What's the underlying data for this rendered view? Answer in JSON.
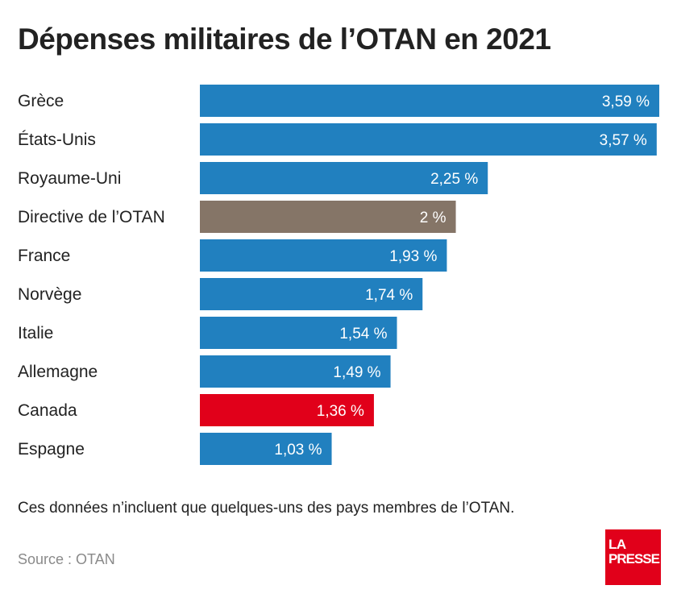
{
  "chart_data": {
    "type": "bar",
    "orientation": "horizontal",
    "title": "Dépenses militaires de l’OTAN en 2021",
    "categories": [
      "Grèce",
      "États-Unis",
      "Royaume-Uni",
      "Directive de l’OTAN",
      "France",
      "Norvège",
      "Italie",
      "Allemagne",
      "Canada",
      "Espagne"
    ],
    "values": [
      3.59,
      3.57,
      2.25,
      2,
      1.93,
      1.74,
      1.54,
      1.49,
      1.36,
      1.03
    ],
    "value_labels": [
      "3,59 %",
      "3,57 %",
      "2,25 %",
      "2 %",
      "1,93 %",
      "1,74 %",
      "1,54 %",
      "1,49 %",
      "1,36 %",
      "1,03 %"
    ],
    "bar_colors": [
      "#2180bf",
      "#2180bf",
      "#2180bf",
      "#857567",
      "#2180bf",
      "#2180bf",
      "#2180bf",
      "#2180bf",
      "#e1001a",
      "#2180bf"
    ],
    "xlim": [
      0,
      3.59
    ],
    "grid": false,
    "legend": "none"
  },
  "note": "Ces données n’incluent que quelques-uns des pays membres de l’OTAN.",
  "source": "Source : OTAN",
  "logo": {
    "line1": "LA",
    "line2": "PRESSE",
    "color": "#e1001a"
  }
}
